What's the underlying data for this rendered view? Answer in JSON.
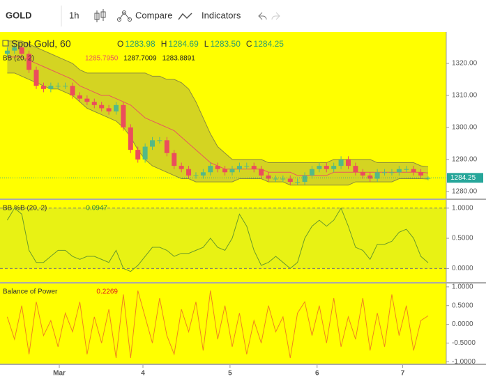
{
  "toolbar": {
    "symbol": "GOLD",
    "interval": "1h",
    "compare": "Compare",
    "indicators": "Indicators"
  },
  "chart_data": [
    {
      "type": "candlestick",
      "title": "Spot Gold, 60",
      "ohlc_legend": [
        {
          "key": "O",
          "value": 1283.98
        },
        {
          "key": "H",
          "value": 1284.69
        },
        {
          "key": "L",
          "value": 1283.5,
          "value_label": "1283.50"
        },
        {
          "key": "C",
          "value": 1284.25
        }
      ],
      "x": [
        0,
        1,
        2,
        3,
        4,
        5,
        6,
        7,
        8,
        9,
        10,
        11,
        12,
        13,
        14,
        15,
        16,
        17,
        18,
        19,
        20,
        21,
        22,
        23,
        24,
        25,
        26,
        27,
        28,
        29,
        30,
        31,
        32,
        33,
        34,
        35,
        36,
        37,
        38,
        39,
        40,
        41,
        42,
        43,
        44,
        45,
        46,
        47,
        48,
        49,
        50,
        51,
        52,
        53,
        54,
        55,
        56,
        57,
        58
      ],
      "open": [
        1323,
        1324,
        1325,
        1323,
        1318,
        1313,
        1312,
        1313,
        1313,
        1313,
        1310,
        1309,
        1308,
        1307,
        1306,
        1305,
        1307,
        1300,
        1293,
        1290,
        1294,
        1296,
        1296,
        1292,
        1288,
        1287,
        1285,
        1285,
        1286,
        1288,
        1287,
        1286,
        1287,
        1288,
        1288,
        1287,
        1285,
        1284,
        1284,
        1284,
        1283,
        1283,
        1285,
        1287,
        1288,
        1287,
        1288,
        1290,
        1288,
        1286,
        1285,
        1284,
        1286,
        1286,
        1286,
        1287,
        1287,
        1286,
        1283.98
      ],
      "high": [
        1325,
        1326,
        1326,
        1324,
        1319,
        1314,
        1314,
        1314,
        1314,
        1314,
        1311,
        1310,
        1309,
        1308,
        1307,
        1308,
        1308,
        1301,
        1294,
        1295,
        1297,
        1297,
        1297,
        1293,
        1289,
        1288,
        1286,
        1287,
        1289,
        1289,
        1288,
        1288,
        1289,
        1289,
        1289,
        1288,
        1286,
        1285,
        1285,
        1285,
        1284,
        1286,
        1288,
        1289,
        1289,
        1289,
        1291,
        1291,
        1289,
        1287,
        1286,
        1287,
        1287,
        1287,
        1288,
        1288,
        1288,
        1287,
        1284.69
      ],
      "low": [
        1322,
        1323,
        1322,
        1317,
        1312,
        1311,
        1311,
        1312,
        1312,
        1309,
        1308,
        1307,
        1306,
        1305,
        1304,
        1304,
        1299,
        1292,
        1289,
        1289,
        1293,
        1295,
        1291,
        1287,
        1286,
        1284,
        1284,
        1284,
        1285,
        1286,
        1285,
        1285,
        1286,
        1287,
        1286,
        1284,
        1283,
        1283,
        1283,
        1282,
        1282,
        1282,
        1284,
        1286,
        1286,
        1286,
        1287,
        1287,
        1285,
        1284,
        1283,
        1283,
        1285,
        1285,
        1285,
        1286,
        1285,
        1284,
        1283.5
      ],
      "close": [
        1324,
        1325,
        1323,
        1318,
        1313,
        1312,
        1313,
        1313,
        1313,
        1310,
        1309,
        1308,
        1307,
        1306,
        1305,
        1307,
        1300,
        1293,
        1290,
        1294,
        1296,
        1296,
        1292,
        1288,
        1287,
        1285,
        1285,
        1286,
        1288,
        1287,
        1286,
        1287,
        1288,
        1288,
        1287,
        1285,
        1284,
        1284,
        1284,
        1283,
        1283,
        1285,
        1287,
        1288,
        1287,
        1288,
        1290,
        1288,
        1286,
        1285,
        1284,
        1286,
        1286,
        1286,
        1287,
        1287,
        1286,
        1285,
        1284.25
      ],
      "up_color": "#53b987",
      "down_color": "#eb4d5c",
      "last_price": 1284.25,
      "last_price_color": "#26a69a",
      "xlim": [
        -1,
        60.5
      ],
      "ylim": [
        1277.8,
        1329.8
      ],
      "yticks": [
        {
          "value": 1280,
          "label": "1280.00"
        },
        {
          "value": 1290,
          "label": "1290.00"
        },
        {
          "value": 1300,
          "label": "1300.00"
        },
        {
          "value": 1310,
          "label": "1310.00"
        },
        {
          "value": 1320,
          "label": "1320.00"
        }
      ],
      "indicator": {
        "name": "BB (20, 2)",
        "fill": "#c9c92a",
        "series": [
          {
            "color": "#e8585e",
            "legend_label": "1285.7950",
            "values": [
              1322,
              1322,
              1322,
              1321,
              1320,
              1319,
              1318,
              1317,
              1316,
              1315,
              1313,
              1312,
              1311,
              1310,
              1310,
              1309,
              1308,
              1307,
              1305,
              1303,
              1302,
              1301,
              1300,
              1299,
              1297,
              1295,
              1293,
              1291,
              1289,
              1288,
              1287,
              1287,
              1287,
              1287,
              1287,
              1287,
              1286,
              1286,
              1286,
              1286,
              1285,
              1285,
              1285,
              1285,
              1285,
              1286,
              1286,
              1286,
              1286,
              1286,
              1286,
              1286,
              1286,
              1286,
              1286,
              1286,
              1286,
              1286,
              1285.795
            ]
          },
          {
            "color": "#8c8c3c",
            "legend_label": "1287.7009",
            "values": [
              1327,
              1327,
              1327,
              1326,
              1325,
              1324,
              1323,
              1322,
              1321,
              1320,
              1318,
              1317,
              1317,
              1317,
              1317,
              1317,
              1317,
              1317,
              1317,
              1317,
              1316,
              1316,
              1315,
              1315,
              1314,
              1312,
              1308,
              1303,
              1298,
              1294,
              1292,
              1290,
              1290,
              1290,
              1290,
              1290,
              1289,
              1289,
              1289,
              1289,
              1289,
              1289,
              1289,
              1289,
              1289,
              1290,
              1290,
              1290,
              1290,
              1290,
              1290,
              1289,
              1289,
              1289,
              1289,
              1289,
              1289,
              1288,
              1287.7009
            ]
          },
          {
            "color": "#8c8c3c",
            "legend_label": "1283.8891",
            "values": [
              1317,
              1317,
              1316,
              1315,
              1314,
              1313,
              1312,
              1312,
              1311,
              1310,
              1308,
              1306,
              1305,
              1304,
              1303,
              1302,
              1300,
              1297,
              1293,
              1290,
              1288,
              1287,
              1286,
              1285,
              1284,
              1284,
              1283,
              1283,
              1283,
              1283,
              1283,
              1283,
              1284,
              1284,
              1284,
              1284,
              1283,
              1283,
              1283,
              1282,
              1282,
              1282,
              1282,
              1282,
              1282,
              1282,
              1282,
              1282,
              1283,
              1283,
              1283,
              1283,
              1283,
              1283,
              1284,
              1284,
              1284,
              1284,
              1283.8891
            ]
          }
        ]
      }
    },
    {
      "type": "line",
      "title": "BB %B (20, 2)",
      "band": [
        0,
        1
      ],
      "band_fill": "#e8f214",
      "x": [
        0,
        1,
        2,
        3,
        4,
        5,
        6,
        7,
        8,
        9,
        10,
        11,
        12,
        13,
        14,
        15,
        16,
        17,
        18,
        19,
        20,
        21,
        22,
        23,
        24,
        25,
        26,
        27,
        28,
        29,
        30,
        31,
        32,
        33,
        34,
        35,
        36,
        37,
        38,
        39,
        40,
        41,
        42,
        43,
        44,
        45,
        46,
        47,
        48,
        49,
        50,
        51,
        52,
        53,
        54,
        55,
        56,
        57,
        58
      ],
      "series": [
        {
          "color": "#6a9a2a",
          "values": [
            0.8,
            1.0,
            0.9,
            0.3,
            0.1,
            0.1,
            0.2,
            0.3,
            0.3,
            0.2,
            0.15,
            0.2,
            0.2,
            0.15,
            0.1,
            0.3,
            0.0,
            -0.05,
            0.05,
            0.2,
            0.35,
            0.35,
            0.3,
            0.2,
            0.25,
            0.25,
            0.3,
            0.35,
            0.5,
            0.35,
            0.3,
            0.5,
            0.9,
            0.7,
            0.3,
            0.05,
            0.1,
            0.2,
            0.1,
            0.0,
            0.1,
            0.5,
            0.7,
            0.8,
            0.7,
            0.8,
            1.0,
            0.7,
            0.35,
            0.3,
            0.15,
            0.4,
            0.4,
            0.45,
            0.6,
            0.65,
            0.5,
            0.2,
            0.0947
          ]
        }
      ],
      "xlim": [
        -1,
        60.5
      ],
      "ylim": [
        -0.227,
        1.136
      ],
      "yticks": [
        {
          "value": 0,
          "label": "0.0000"
        },
        {
          "value": 0.5,
          "label": "0.5000"
        },
        {
          "value": 1,
          "label": "1.0000"
        }
      ]
    },
    {
      "type": "line",
      "title": "Balance of Power",
      "x": [
        0,
        1,
        2,
        3,
        4,
        5,
        6,
        7,
        8,
        9,
        10,
        11,
        12,
        13,
        14,
        15,
        16,
        17,
        18,
        19,
        20,
        21,
        22,
        23,
        24,
        25,
        26,
        27,
        28,
        29,
        30,
        31,
        32,
        33,
        34,
        35,
        36,
        37,
        38,
        39,
        40,
        41,
        42,
        43,
        44,
        45,
        46,
        47,
        48,
        49,
        50,
        51,
        52,
        53,
        54,
        55,
        56,
        57,
        58
      ],
      "series": [
        {
          "color": "#f0841e",
          "values": [
            0.2,
            -0.4,
            0.5,
            -0.8,
            0.6,
            -0.3,
            0.1,
            -0.6,
            0.3,
            -0.2,
            0.6,
            -0.8,
            0.2,
            -0.5,
            0.4,
            -0.9,
            0.8,
            -0.9,
            0.9,
            0.2,
            -0.5,
            0.7,
            -0.3,
            -0.8,
            0.4,
            -0.2,
            0.6,
            -0.7,
            0.9,
            -0.4,
            0.5,
            -0.6,
            0.3,
            -0.8,
            0.1,
            -0.5,
            0.5,
            -0.2,
            0.2,
            -0.9,
            0.3,
            0.6,
            -0.3,
            0.5,
            -0.5,
            0.7,
            -0.6,
            0.2,
            -0.4,
            0.7,
            -0.7,
            0.3,
            -0.6,
            0.8,
            -0.3,
            0.5,
            -0.7,
            0.1,
            0.2269
          ]
        }
      ],
      "xlim": [
        -1,
        60.5
      ],
      "ylim": [
        -1.05,
        1.09
      ],
      "yticks": [
        {
          "value": -1,
          "label": "-1.0000"
        },
        {
          "value": -0.5,
          "label": "-0.5000"
        },
        {
          "value": 0,
          "label": "0.0000"
        },
        {
          "value": 0.5,
          "label": "0.5000"
        },
        {
          "value": 1,
          "label": "1.0000"
        }
      ],
      "xticks": [
        {
          "value": 7.17,
          "label": "Mar"
        },
        {
          "value": 18.7,
          "label": "4"
        },
        {
          "value": 30.7,
          "label": "5"
        },
        {
          "value": 42.7,
          "label": "6"
        },
        {
          "value": 54.5,
          "label": "7"
        }
      ]
    }
  ]
}
